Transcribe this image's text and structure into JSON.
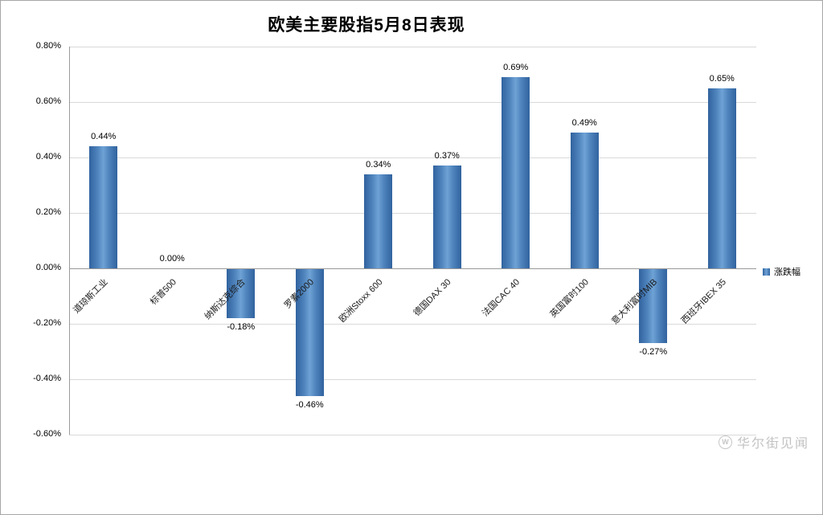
{
  "chart": {
    "legend_label": "涨跌幅",
    "watermark": "华尔街见闻",
    "watermark_logo": "W",
    "bar_color": "#4f84bd"
  },
  "chart_data": {
    "type": "bar",
    "title": "欧美主要股指5月8日表现",
    "categories": [
      "道琼斯工业",
      "标普500",
      "纳斯达克综合",
      "罗素2000",
      "欧洲Stoxx 600",
      "德国DAX 30",
      "法国CAC 40",
      "英国富时100",
      "意大利富时MIB",
      "西班牙IBEX 35"
    ],
    "values": [
      0.44,
      0.0,
      -0.18,
      -0.46,
      0.34,
      0.37,
      0.69,
      0.49,
      -0.27,
      0.65
    ],
    "value_labels": [
      "0.44%",
      "0.00%",
      "-0.18%",
      "-0.46%",
      "0.34%",
      "0.37%",
      "0.69%",
      "0.49%",
      "-0.27%",
      "0.65%"
    ],
    "xlabel": "",
    "ylabel": "",
    "ylim": [
      -0.6,
      0.8
    ],
    "ytick_step": 0.2,
    "ytick_labels": [
      "0.80%",
      "0.60%",
      "0.40%",
      "0.20%",
      "0.00%",
      "-0.20%",
      "-0.40%",
      "-0.60%"
    ],
    "legend": [
      "涨跌幅"
    ],
    "legend_position": "right",
    "grid": true
  }
}
